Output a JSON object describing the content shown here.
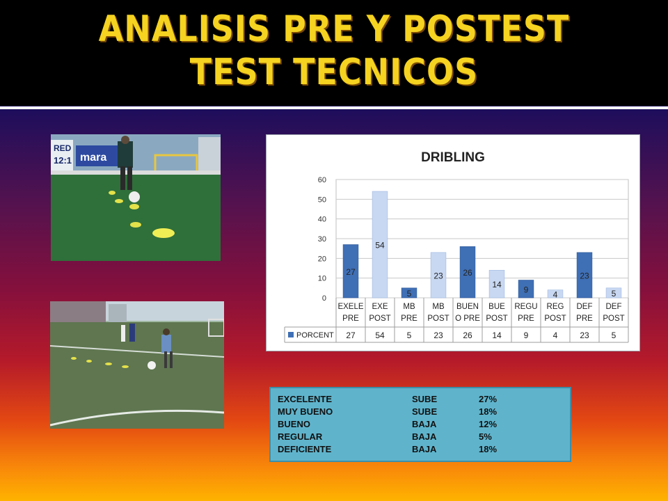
{
  "title": {
    "line1": "ANALISIS PRE Y POSTEST",
    "line2": "TEST TECNICOS"
  },
  "photos": [
    {
      "subject": "indoor turf field, player dribbling past yellow cones",
      "signage": [
        "RED",
        "12:1",
        "mara"
      ]
    },
    {
      "subject": "outdoor grass field, player dribbling through cones"
    }
  ],
  "chart_data": {
    "type": "bar",
    "title": "DRIBLING",
    "categories": [
      "EXELE PRE",
      "EXE POST",
      "MB PRE",
      "MB POST",
      "BUEN O PRE",
      "BUE POST",
      "REGU PRE",
      "REG POST",
      "DEF PRE",
      "DEF POST"
    ],
    "category_lines": [
      [
        "EXELE",
        "PRE"
      ],
      [
        "EXE",
        "POST"
      ],
      [
        "MB",
        "PRE"
      ],
      [
        "MB",
        "POST"
      ],
      [
        "BUEN",
        "O PRE"
      ],
      [
        "BUE",
        "POST"
      ],
      [
        "REGU",
        "PRE"
      ],
      [
        "REG",
        "POST"
      ],
      [
        "DEF",
        "PRE"
      ],
      [
        "DEF",
        "POST"
      ]
    ],
    "series": [
      {
        "name": "PORCENT",
        "values": [
          27,
          54,
          5,
          23,
          26,
          14,
          9,
          4,
          23,
          5
        ]
      }
    ],
    "ylim": [
      0,
      60
    ],
    "yticks": [
      0,
      10,
      20,
      30,
      40,
      50,
      60
    ],
    "data_table": true,
    "grid": true,
    "colors": {
      "pre": "#3f6fb5",
      "post": "#c8d8f2"
    }
  },
  "summary": [
    {
      "level": "EXCELENTE",
      "trend": "SUBE",
      "value": "27%"
    },
    {
      "level": "MUY BUENO",
      "trend": "SUBE",
      "value": "18%"
    },
    {
      "level": "BUENO",
      "trend": "BAJA",
      "value": "12%"
    },
    {
      "level": "REGULAR",
      "trend": "BAJA",
      "value": "5%"
    },
    {
      "level": "DEFICIENTE",
      "trend": "BAJA",
      "value": "18%"
    }
  ]
}
